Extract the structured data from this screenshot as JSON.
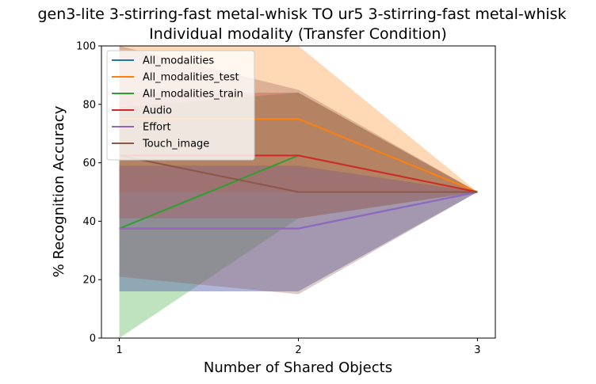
{
  "chart_data": {
    "type": "line",
    "title_line1": "gen3-lite 3-stirring-fast metal-whisk TO ur5 3-stirring-fast metal-whisk",
    "title_line2": "Individual modality (Transfer Condition)",
    "xlabel": "Number of Shared Objects",
    "ylabel": "% Recognition Accuracy",
    "x": [
      1,
      2,
      3
    ],
    "xticks": [
      "1",
      "2",
      "3"
    ],
    "yticks": [
      "0",
      "20",
      "40",
      "60",
      "80",
      "100"
    ],
    "xlim": [
      0.9,
      3.1
    ],
    "ylim": [
      0,
      100
    ],
    "legend_position": "upper left",
    "series": [
      {
        "name": "All_modalities",
        "color": "#1f77b4",
        "values": [
          37.5,
          37.5,
          50
        ],
        "lower": [
          16,
          16,
          50
        ],
        "upper": [
          59,
          59,
          50
        ]
      },
      {
        "name": "All_modalities_test",
        "color": "#ff7f0e",
        "values": [
          75,
          75,
          50
        ],
        "lower": [
          50,
          50,
          50
        ],
        "upper": [
          100,
          100,
          50
        ]
      },
      {
        "name": "All_modalities_train",
        "color": "#2ca02c",
        "values": [
          37.5,
          62.5,
          50
        ],
        "lower": [
          0,
          41,
          50
        ],
        "upper": [
          79,
          84,
          50
        ]
      },
      {
        "name": "Audio",
        "color": "#d62728",
        "values": [
          62.5,
          62.5,
          50
        ],
        "lower": [
          41,
          41,
          50
        ],
        "upper": [
          84,
          84,
          50
        ]
      },
      {
        "name": "Effort",
        "color": "#9467bd",
        "values": [
          37.5,
          37.5,
          50
        ],
        "lower": [
          16,
          16,
          50
        ],
        "upper": [
          59,
          59,
          50
        ]
      },
      {
        "name": "Touch_image",
        "color": "#8c564b",
        "values": [
          62.5,
          50,
          50
        ],
        "lower": [
          21,
          15,
          50
        ],
        "upper": [
          100,
          85,
          50
        ]
      }
    ]
  }
}
